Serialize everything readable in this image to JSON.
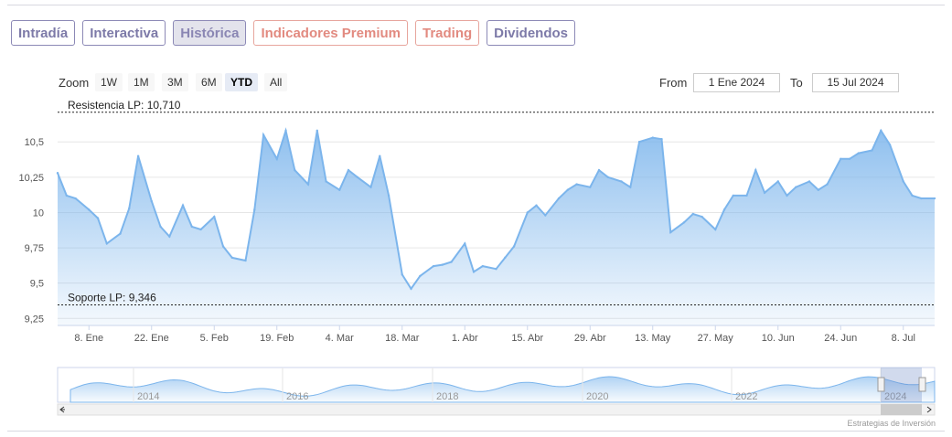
{
  "tabs": [
    {
      "label": "Intradía",
      "style": "purple"
    },
    {
      "label": "Interactiva",
      "style": "purple"
    },
    {
      "label": "Histórica",
      "style": "purple active"
    },
    {
      "label": "Indicadores Premium",
      "style": "red"
    },
    {
      "label": "Trading",
      "style": "red"
    },
    {
      "label": "Dividendos",
      "style": "purple"
    }
  ],
  "range_selector": {
    "zoom_label": "Zoom",
    "buttons": [
      "1W",
      "1M",
      "3M",
      "6M",
      "YTD",
      "All"
    ],
    "selected": "YTD",
    "from_label": "From",
    "from_value": "1 Ene 2024",
    "to_label": "To",
    "to_value": "15 Jul 2024"
  },
  "credit": "Estrategias de Inversión",
  "colors": {
    "line": "#7cb5ec",
    "area_top": "#7cb5ec",
    "purple": "#7d7aa8",
    "red": "#e28a80"
  },
  "chart_data": {
    "type": "area",
    "title": "",
    "xlabel": "",
    "ylabel": "",
    "ylim": [
      9.2,
      10.78
    ],
    "y_ticks": [
      9.25,
      9.5,
      9.75,
      10,
      10.25,
      10.5
    ],
    "y_tick_labels": [
      "9,25",
      "9,5",
      "9,75",
      "10",
      "10,25",
      "10,5"
    ],
    "x_tick_labels": [
      "8. Ene",
      "22. Ene",
      "5. Feb",
      "19. Feb",
      "4. Mar",
      "18. Mar",
      "1. Abr",
      "15. Abr",
      "29. Abr",
      "13. May",
      "27. May",
      "10. Jun",
      "24. Jun",
      "8. Jul"
    ],
    "x_tick_dates": [
      "2024-01-08",
      "2024-01-22",
      "2024-02-05",
      "2024-02-19",
      "2024-03-04",
      "2024-03-18",
      "2024-04-01",
      "2024-04-15",
      "2024-04-29",
      "2024-05-13",
      "2024-05-27",
      "2024-06-10",
      "2024-06-24",
      "2024-07-08"
    ],
    "x_range": [
      "2024-01-01",
      "2024-07-15"
    ],
    "reference_lines": [
      {
        "label": "Resistencia LP: 10,710",
        "value": 10.71
      },
      {
        "label": "Soporte LP: 9,346",
        "value": 9.346
      }
    ],
    "series": [
      {
        "name": "",
        "x": [
          "2024-01-01",
          "2024-01-03",
          "2024-01-05",
          "2024-01-08",
          "2024-01-10",
          "2024-01-12",
          "2024-01-15",
          "2024-01-17",
          "2024-01-19",
          "2024-01-22",
          "2024-01-24",
          "2024-01-26",
          "2024-01-29",
          "2024-01-31",
          "2024-02-02",
          "2024-02-05",
          "2024-02-07",
          "2024-02-09",
          "2024-02-12",
          "2024-02-14",
          "2024-02-16",
          "2024-02-19",
          "2024-02-21",
          "2024-02-23",
          "2024-02-26",
          "2024-02-28",
          "2024-03-01",
          "2024-03-04",
          "2024-03-06",
          "2024-03-08",
          "2024-03-11",
          "2024-03-13",
          "2024-03-15",
          "2024-03-18",
          "2024-03-20",
          "2024-03-22",
          "2024-03-25",
          "2024-03-27",
          "2024-03-29",
          "2024-04-01",
          "2024-04-03",
          "2024-04-05",
          "2024-04-08",
          "2024-04-10",
          "2024-04-12",
          "2024-04-15",
          "2024-04-17",
          "2024-04-19",
          "2024-04-22",
          "2024-04-24",
          "2024-04-26",
          "2024-04-29",
          "2024-05-01",
          "2024-05-03",
          "2024-05-06",
          "2024-05-08",
          "2024-05-10",
          "2024-05-13",
          "2024-05-15",
          "2024-05-17",
          "2024-05-20",
          "2024-05-22",
          "2024-05-24",
          "2024-05-27",
          "2024-05-29",
          "2024-05-31",
          "2024-06-03",
          "2024-06-05",
          "2024-06-07",
          "2024-06-10",
          "2024-06-12",
          "2024-06-14",
          "2024-06-17",
          "2024-06-19",
          "2024-06-21",
          "2024-06-24",
          "2024-06-26",
          "2024-06-28",
          "2024-07-01",
          "2024-07-03",
          "2024-07-05",
          "2024-07-08",
          "2024-07-10",
          "2024-07-12",
          "2024-07-15"
        ],
        "values": [
          10.28,
          10.12,
          10.1,
          10.02,
          9.96,
          9.78,
          9.85,
          10.03,
          10.4,
          10.08,
          9.9,
          9.83,
          10.05,
          9.9,
          9.88,
          9.97,
          9.76,
          9.68,
          9.66,
          10.02,
          10.55,
          10.38,
          10.58,
          10.3,
          10.2,
          10.58,
          10.22,
          10.16,
          10.3,
          10.25,
          10.18,
          10.4,
          10.12,
          9.56,
          9.46,
          9.55,
          9.62,
          9.63,
          9.65,
          9.78,
          9.58,
          9.62,
          9.6,
          9.68,
          9.76,
          10.0,
          10.05,
          9.98,
          10.1,
          10.16,
          10.2,
          10.18,
          10.3,
          10.25,
          10.22,
          10.18,
          10.5,
          10.53,
          10.52,
          9.86,
          9.93,
          9.99,
          9.97,
          9.88,
          10.02,
          10.12,
          10.12,
          10.3,
          10.14,
          10.22,
          10.12,
          10.18,
          10.22,
          10.16,
          10.2,
          10.38,
          10.38,
          10.42,
          10.44,
          10.58,
          10.48,
          10.22,
          10.12,
          10.1,
          10.1
        ]
      }
    ],
    "navigator": {
      "x_tick_labels": [
        "2014",
        "2016",
        "2018",
        "2020",
        "2022",
        "2024"
      ]
    }
  }
}
